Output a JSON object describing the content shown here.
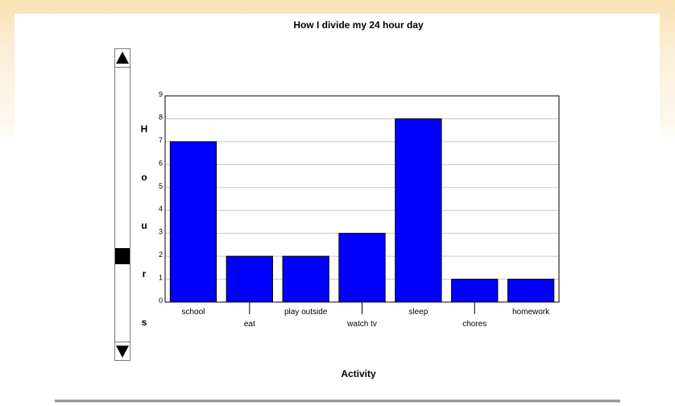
{
  "chart_data": {
    "type": "bar",
    "title": "How I divide my 24 hour day",
    "xlabel": "Activity",
    "ylabel": "Hours",
    "categories": [
      "school",
      "eat",
      "play outside",
      "watch tv",
      "sleep",
      "chores",
      "homework"
    ],
    "values": [
      7,
      2,
      2,
      3,
      8,
      1,
      1
    ],
    "ylim": [
      0,
      9
    ],
    "yticks": [
      "0",
      "1",
      "2",
      "3",
      "4",
      "5",
      "6",
      "7",
      "8",
      "9"
    ],
    "grid": true,
    "bar_color": "#0000ff"
  },
  "y_axis_letters": [
    "H",
    "o",
    "u",
    "r",
    "s"
  ]
}
